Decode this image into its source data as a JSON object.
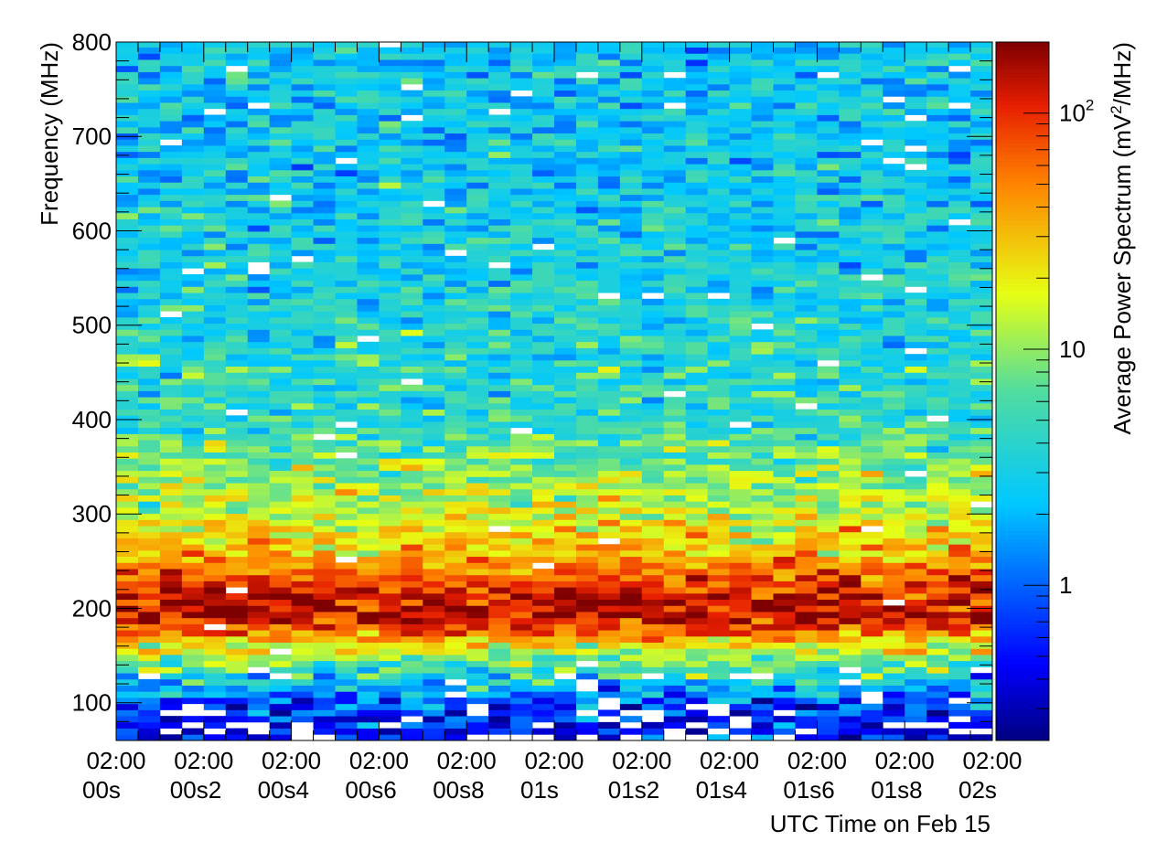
{
  "chart_data": {
    "type": "heatmap",
    "title": "",
    "xlabel": "UTC Time on Feb 15",
    "ylabel": "Frequency (MHz)",
    "zlabel_main": "Average Power Spectrum (mV",
    "zlabel_sup": "2",
    "zlabel_end": "/MHz)",
    "x_unit": "s",
    "xlim": [
      0,
      2.0
    ],
    "ylim": [
      60,
      800
    ],
    "zlim": [
      0.22,
      200
    ],
    "z_scale": "log",
    "colormap": "jet",
    "x_ticks": [
      {
        "value": 0.0,
        "line1": "02:00",
        "line2": "00s"
      },
      {
        "value": 0.2,
        "line1": "02:00",
        "line2": "00s2"
      },
      {
        "value": 0.4,
        "line1": "02:00",
        "line2": "00s4"
      },
      {
        "value": 0.6,
        "line1": "02:00",
        "line2": "00s6"
      },
      {
        "value": 0.8,
        "line1": "02:00",
        "line2": "00s8"
      },
      {
        "value": 1.0,
        "line1": "02:00",
        "line2": "01s"
      },
      {
        "value": 1.2,
        "line1": "02:00",
        "line2": "01s2"
      },
      {
        "value": 1.4,
        "line1": "02:00",
        "line2": "01s4"
      },
      {
        "value": 1.6,
        "line1": "02:00",
        "line2": "01s6"
      },
      {
        "value": 1.8,
        "line1": "02:00",
        "line2": "01s8"
      },
      {
        "value": 2.0,
        "line1": "02:00",
        "line2": "02s"
      }
    ],
    "y_ticks": [
      100,
      200,
      300,
      400,
      500,
      600,
      700,
      800
    ],
    "z_ticks": [
      {
        "value": 1,
        "label": "1"
      },
      {
        "value": 10,
        "label": "10"
      },
      {
        "value": 100,
        "label": "10",
        "sup": "2"
      }
    ],
    "n_time_bins": 40,
    "freq_bin_mhz": 6.5,
    "frequency_profile": [
      {
        "freq": 60,
        "power": 0.4
      },
      {
        "freq": 100,
        "power": 0.8
      },
      {
        "freq": 130,
        "power": 4
      },
      {
        "freq": 160,
        "power": 20
      },
      {
        "freq": 190,
        "power": 140
      },
      {
        "freq": 215,
        "power": 120
      },
      {
        "freq": 240,
        "power": 60
      },
      {
        "freq": 270,
        "power": 30
      },
      {
        "freq": 300,
        "power": 15
      },
      {
        "freq": 350,
        "power": 9
      },
      {
        "freq": 400,
        "power": 5
      },
      {
        "freq": 500,
        "power": 3.5
      },
      {
        "freq": 600,
        "power": 3
      },
      {
        "freq": 700,
        "power": 2.5
      },
      {
        "freq": 800,
        "power": 2.5
      }
    ]
  }
}
